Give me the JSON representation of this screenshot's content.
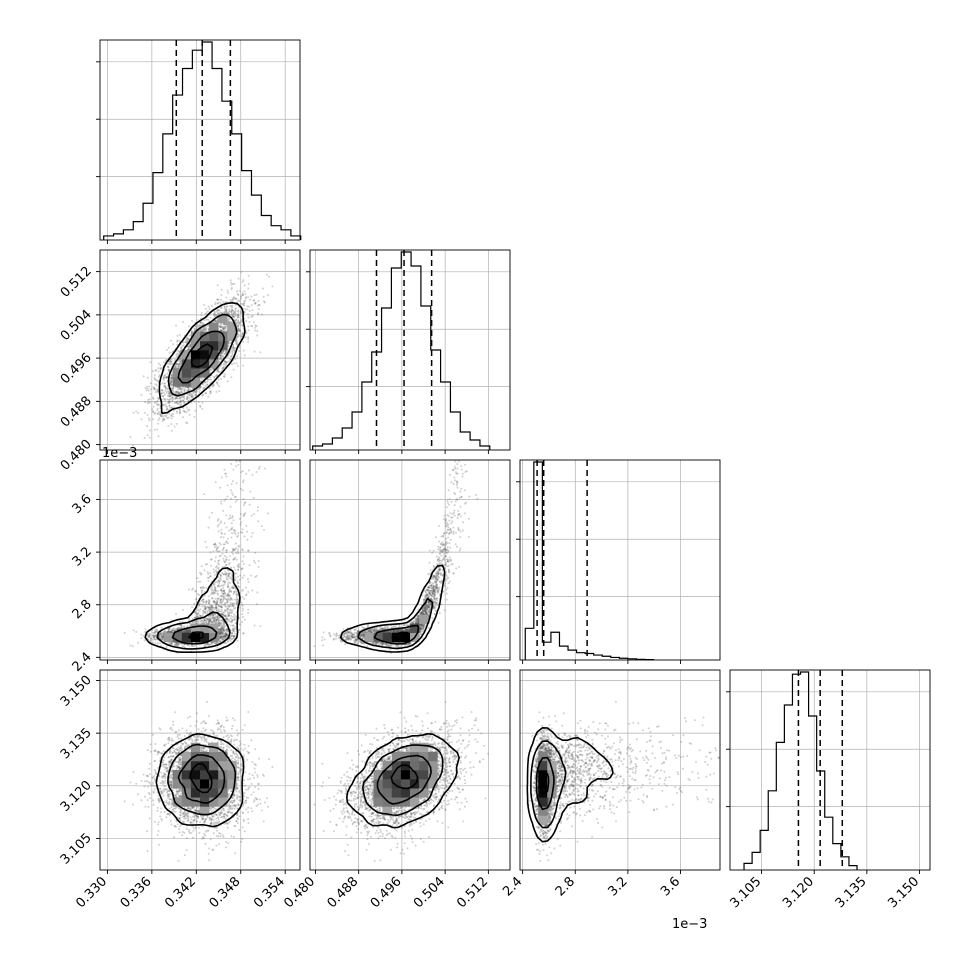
{
  "chart_data": {
    "type": "corner",
    "title": "",
    "colors": {
      "ink": "#000000",
      "grid": "#b0b0b0",
      "dots": "#555555"
    },
    "grid": true,
    "parameters": [
      {
        "index": 0,
        "range": [
          0.329,
          0.356
        ],
        "ticks": [
          "0.330",
          "0.336",
          "0.342",
          "0.348",
          "0.354"
        ],
        "tick_values": [
          0.33,
          0.336,
          0.342,
          0.348,
          0.354
        ],
        "quantiles": [
          0.3393,
          0.3428,
          0.3466
        ],
        "mean": 0.3428,
        "sd": 0.0029,
        "offset_label": ""
      },
      {
        "index": 1,
        "range": [
          0.479,
          0.516
        ],
        "ticks": [
          "0.480",
          "0.488",
          "0.496",
          "0.504",
          "0.512"
        ],
        "tick_values": [
          0.48,
          0.488,
          0.496,
          0.504,
          0.512
        ],
        "quantiles": [
          0.4913,
          0.4964,
          0.5015
        ],
        "mean": 0.4964,
        "sd": 0.0048,
        "offset_label": ""
      },
      {
        "index": 2,
        "range": [
          2.38,
          3.9
        ],
        "ticks": [
          "2.4",
          "2.8",
          "3.2",
          "3.6"
        ],
        "tick_values": [
          2.4,
          2.8,
          3.2,
          3.6
        ],
        "quantiles": [
          2.51,
          2.56,
          2.89
        ],
        "mean": 2.56,
        "sd": 0.2,
        "offset_label": "1e−3"
      },
      {
        "index": 3,
        "range": [
          3.096,
          3.153
        ],
        "ticks": [
          "3.105",
          "3.120",
          "3.135",
          "3.150"
        ],
        "tick_values": [
          3.105,
          3.12,
          3.135,
          3.15
        ],
        "quantiles": [
          3.1155,
          3.1217,
          3.128
        ],
        "mean": 3.1217,
        "sd": 0.0065,
        "offset_label": ""
      }
    ],
    "histograms": [
      {
        "param": 0,
        "bins_start": 0.3295,
        "bin_width": 0.00133,
        "counts": [
          2,
          3,
          5,
          9,
          18,
          33,
          52,
          71,
          84,
          93,
          97,
          84,
          68,
          52,
          34,
          22,
          12,
          7,
          5,
          2
        ]
      },
      {
        "param": 1,
        "bins_start": 0.4795,
        "bin_width": 0.00182,
        "counts": [
          2,
          3,
          6,
          11,
          19,
          34,
          49,
          71,
          91,
          99,
          92,
          72,
          50,
          34,
          19,
          9,
          5,
          2
        ]
      },
      {
        "param": 2,
        "bins_start": 2.42,
        "bin_width": 0.065,
        "counts": [
          16,
          100,
          9,
          14,
          7,
          5,
          3.7,
          3.3,
          2.5,
          1.9,
          1.3,
          0.9,
          0.6,
          0.35,
          0.2
        ]
      },
      {
        "param": 3,
        "bins_start": 3.1,
        "bin_width": 0.0023,
        "counts": [
          3,
          8,
          18,
          36,
          58,
          75,
          89,
          90,
          70,
          45,
          24,
          12,
          6,
          2
        ]
      }
    ],
    "pairs": [
      {
        "x": 0,
        "y": 1,
        "correlation": 0.75,
        "contours": [
          [
            [
              0.3395,
              0.49
            ],
            [
              0.3412,
              0.4948
            ],
            [
              0.344,
              0.4987
            ],
            [
              0.3469,
              0.503
            ],
            [
              0.347,
              0.5011
            ],
            [
              0.3453,
              0.4973
            ],
            [
              0.3423,
              0.493
            ],
            [
              0.3395,
              0.49
            ]
          ]
        ]
      },
      {
        "x": 0,
        "y": 2,
        "kde_cells": [
          [
            0.3428,
            2.56
          ]
        ]
      },
      {
        "x": 1,
        "y": 2,
        "kde_cells": [
          [
            0.4964,
            2.56
          ]
        ]
      },
      {
        "x": 0,
        "y": 3,
        "correlation": 0.0
      },
      {
        "x": 1,
        "y": 3,
        "correlation": 0.6
      },
      {
        "x": 2,
        "y": 3,
        "correlation": 0.0
      }
    ]
  }
}
